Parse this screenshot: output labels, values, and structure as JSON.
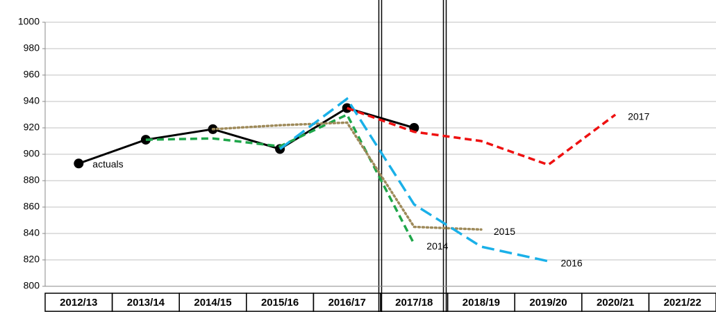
{
  "chart_data": {
    "type": "line",
    "categories": [
      "2012/13",
      "2013/14",
      "2014/15",
      "2015/16",
      "2016/17",
      "2017/18",
      "2018/19",
      "2019/20",
      "2020/21",
      "2021/22"
    ],
    "series": [
      {
        "name": "actuals",
        "color": "#000000",
        "line_style": "solid",
        "markers": true,
        "values": [
          893,
          911,
          919,
          904,
          935,
          920,
          null,
          null,
          null,
          null
        ]
      },
      {
        "name": "2014",
        "color": "#1fa64a",
        "line_style": "dashed",
        "markers": false,
        "values": [
          null,
          911,
          912,
          906,
          930,
          832,
          null,
          null,
          null,
          null
        ]
      },
      {
        "name": "2015",
        "color": "#9e8a5a",
        "line_style": "dotted",
        "markers": false,
        "values": [
          null,
          null,
          919,
          922,
          924,
          845,
          843,
          null,
          null,
          null
        ]
      },
      {
        "name": "2016",
        "color": "#1ab0e8",
        "line_style": "longdash",
        "markers": false,
        "values": [
          null,
          null,
          null,
          904,
          942,
          862,
          830,
          819,
          null,
          null
        ]
      },
      {
        "name": "2017",
        "color": "#ee1111",
        "line_style": "dashed",
        "markers": false,
        "values": [
          null,
          null,
          null,
          null,
          935,
          917,
          910,
          892,
          930,
          null
        ]
      }
    ],
    "ylim": [
      800,
      1000
    ],
    "yticks": [
      800,
      820,
      840,
      860,
      880,
      900,
      920,
      940,
      960,
      980,
      1000
    ],
    "grid": true
  }
}
